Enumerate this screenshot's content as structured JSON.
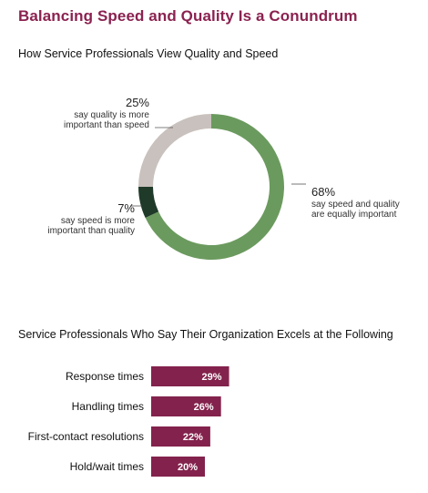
{
  "page": {
    "title": "Balancing Speed and Quality Is a Conundrum"
  },
  "colors": {
    "title": "#8b2250",
    "equal": "#6b9a5e",
    "quality": "#c9c1bd",
    "speed": "#1f3a29",
    "bar": "#83224c"
  },
  "chart_data": [
    {
      "type": "pie",
      "variant": "donut",
      "title": "How Service Professionals View Quality and Speed",
      "slices": [
        {
          "label": "say speed and quality are equally important",
          "value": 68,
          "display": "68%",
          "color": "#6b9a5e"
        },
        {
          "label": "say speed is more important than quality",
          "value": 7,
          "display": "7%",
          "color": "#1f3a29"
        },
        {
          "label": "say quality is more important than speed",
          "value": 25,
          "display": "25%",
          "color": "#c9c1bd"
        }
      ],
      "legend": "none"
    },
    {
      "type": "bar",
      "orientation": "horizontal",
      "title": "Service Professionals Who Say Their Organization Excels at the Following",
      "categories": [
        "Response times",
        "Handling times",
        "First-contact resolutions",
        "Hold/wait times"
      ],
      "values": [
        29,
        26,
        22,
        20
      ],
      "value_labels": [
        "29%",
        "26%",
        "22%",
        "20%"
      ],
      "grid": false,
      "legend": "none"
    }
  ]
}
